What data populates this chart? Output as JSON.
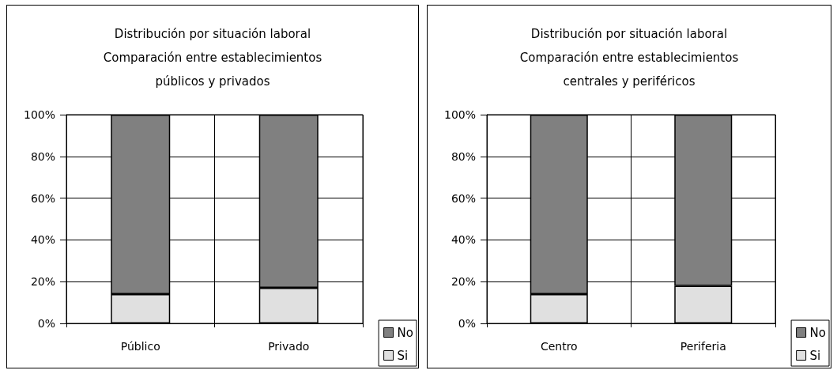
{
  "chart_data": [
    {
      "type": "bar",
      "title": "Distribución por situación laboral\nComparación entre establecimientos\npúblicos y privados",
      "categories": [
        "Público",
        "Privado"
      ],
      "stacked": true,
      "series": [
        {
          "name": "Si",
          "color": "#e0e0e0",
          "values": [
            14,
            17
          ]
        },
        {
          "name": "No",
          "color": "#808080",
          "values": [
            86,
            83
          ]
        }
      ],
      "ylim": [
        0,
        100
      ],
      "yticks": [
        {
          "value": 0,
          "label": "0%"
        },
        {
          "value": 20,
          "label": "20%"
        },
        {
          "value": 40,
          "label": "40%"
        },
        {
          "value": 60,
          "label": "60%"
        },
        {
          "value": 80,
          "label": "80%"
        },
        {
          "value": 100,
          "label": "100%"
        }
      ],
      "grid": true,
      "legend": "bottom right"
    },
    {
      "type": "bar",
      "title": "Distribución por situación laboral\nComparación entre establecimientos\ncentrales y periféricos",
      "categories": [
        "Centro",
        "Periferia"
      ],
      "stacked": true,
      "series": [
        {
          "name": "Si",
          "color": "#e0e0e0",
          "values": [
            14,
            18
          ]
        },
        {
          "name": "No",
          "color": "#808080",
          "values": [
            86,
            82
          ]
        }
      ],
      "ylim": [
        0,
        100
      ],
      "yticks": [
        {
          "value": 0,
          "label": "0%"
        },
        {
          "value": 20,
          "label": "20%"
        },
        {
          "value": 40,
          "label": "40%"
        },
        {
          "value": 60,
          "label": "60%"
        },
        {
          "value": 80,
          "label": "80%"
        },
        {
          "value": 100,
          "label": "100%"
        }
      ],
      "grid": true,
      "legend": "bottom right"
    }
  ]
}
